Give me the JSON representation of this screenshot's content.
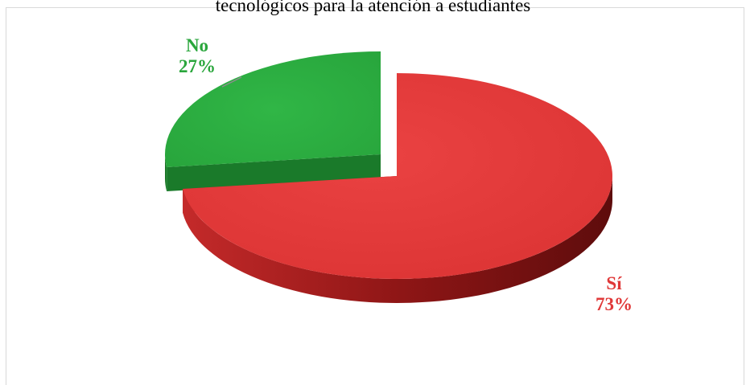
{
  "chart_data": {
    "type": "pie",
    "title": "tecnológicos para la atención a estudiantes",
    "slices": [
      {
        "name": "Sí",
        "value": 73,
        "label": "73%",
        "color": "#e03838",
        "dark": "#a31d1d"
      },
      {
        "name": "No",
        "value": 27,
        "label": "27%",
        "color": "#2db042",
        "dark": "#1a7a2a"
      }
    ],
    "style": "3d-exploded",
    "legend": "none"
  }
}
